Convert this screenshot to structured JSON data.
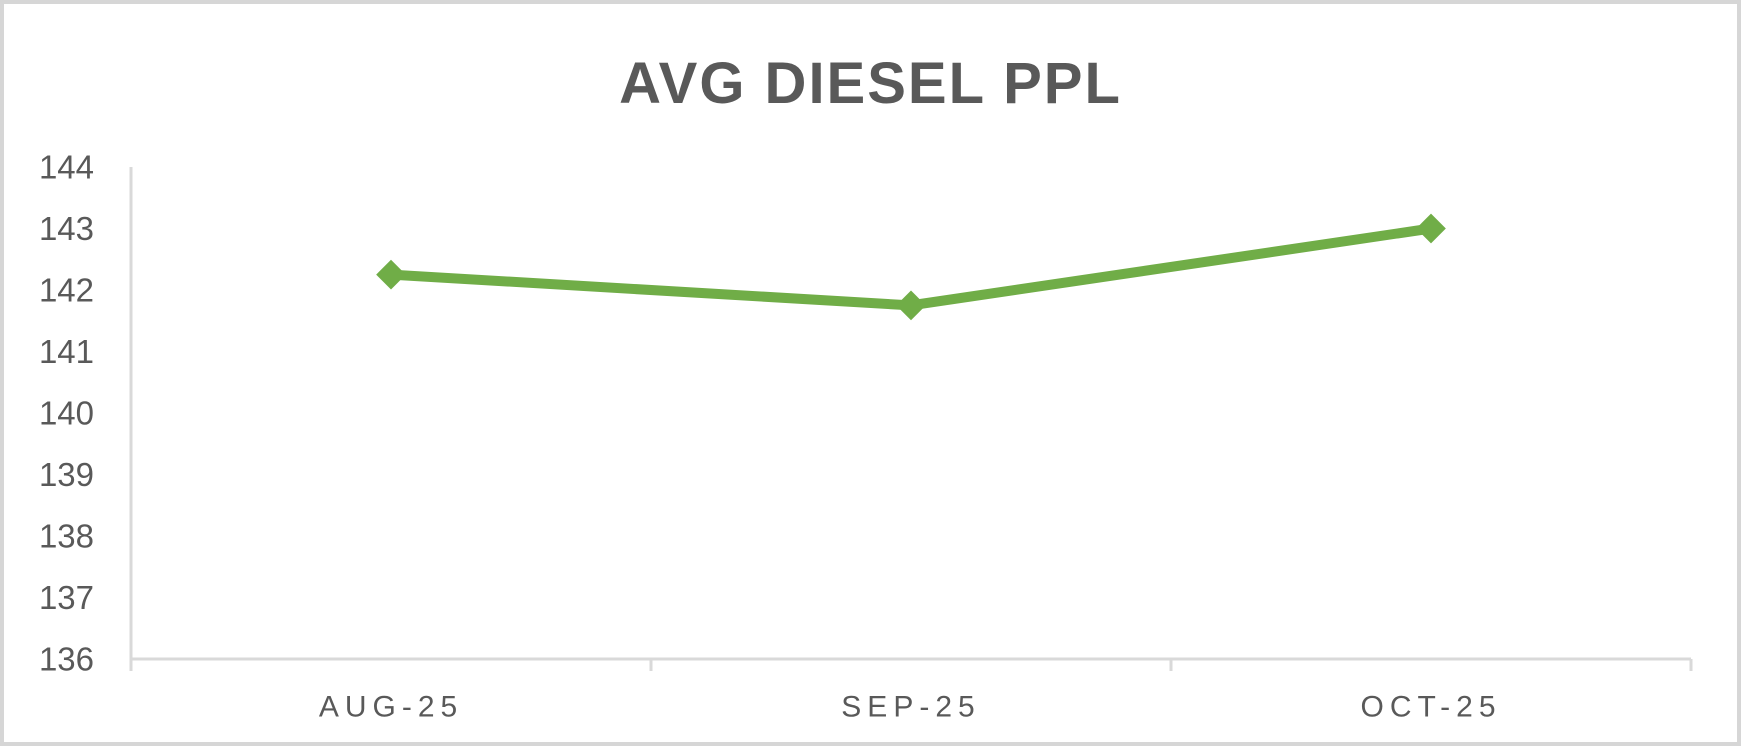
{
  "chart_data": {
    "type": "line",
    "title": "AVG DIESEL PPL",
    "categories": [
      "AUG-25",
      "SEP-25",
      "OCT-25"
    ],
    "series": [
      {
        "name": "AVG DIESEL PPL",
        "values": [
          142.25,
          141.75,
          143.0
        ]
      }
    ],
    "yticks": [
      136,
      137,
      138,
      139,
      140,
      141,
      142,
      143,
      144
    ],
    "ylim": [
      136,
      144
    ],
    "xlabel": "",
    "ylabel": "",
    "grid": false,
    "legend": "none",
    "marker": "diamond",
    "colors": {
      "series": "#70AD47",
      "text": "#595959",
      "axis_line": "#D9D9D9",
      "background": "#FFFFFF",
      "frame_border": "#D6D6D6"
    }
  }
}
